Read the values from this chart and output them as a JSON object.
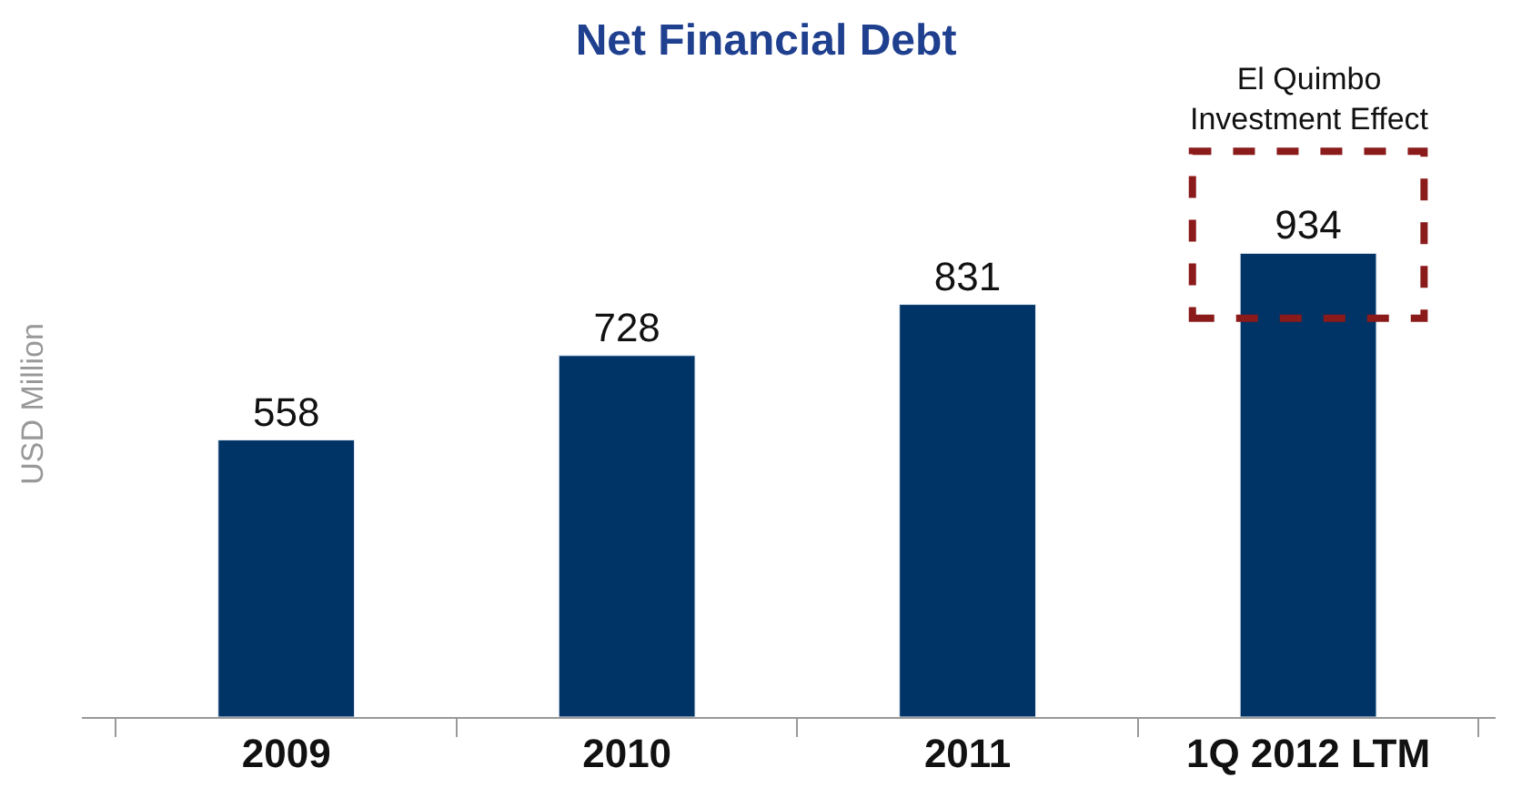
{
  "chart_data": {
    "type": "bar",
    "title": "Net Financial Debt",
    "ylabel": "USD Million",
    "categories": [
      "2009",
      "2010",
      "2011",
      "1Q 2012 LTM"
    ],
    "values": [
      558,
      728,
      831,
      934
    ],
    "color": "#003366",
    "data_labels": true,
    "legend": false,
    "annotations": [
      "El Quimbo\nInvestment Effect"
    ]
  }
}
